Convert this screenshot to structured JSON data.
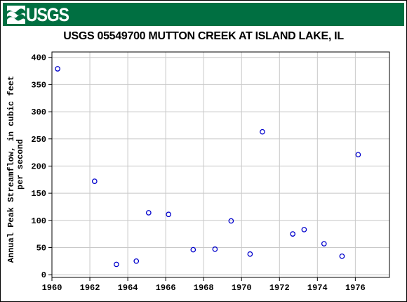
{
  "header": {
    "logo_text": "USGS",
    "banner_color": "#006f41"
  },
  "chart_data": {
    "type": "scatter",
    "title": "USGS 05549700 MUTTON CREEK AT ISLAND LAKE, IL",
    "xlabel": "",
    "ylabel_line1": "Annual Peak Streamflow, in cubic feet",
    "ylabel_line2": "per second",
    "xlim": [
      1960,
      1977.8
    ],
    "ylim": [
      -5,
      410
    ],
    "xticks": [
      1960,
      1962,
      1964,
      1966,
      1968,
      1970,
      1972,
      1974,
      1976
    ],
    "yticks": [
      0,
      50,
      100,
      150,
      200,
      250,
      300,
      350,
      400
    ],
    "grid": true,
    "marker": "open-circle",
    "marker_color": "#0000cc",
    "points": [
      {
        "x": 1960.3,
        "y": 379
      },
      {
        "x": 1962.25,
        "y": 172
      },
      {
        "x": 1963.4,
        "y": 19
      },
      {
        "x": 1964.45,
        "y": 25
      },
      {
        "x": 1965.1,
        "y": 114
      },
      {
        "x": 1966.15,
        "y": 111
      },
      {
        "x": 1967.45,
        "y": 46
      },
      {
        "x": 1968.6,
        "y": 47
      },
      {
        "x": 1969.45,
        "y": 99
      },
      {
        "x": 1970.45,
        "y": 38
      },
      {
        "x": 1971.1,
        "y": 263
      },
      {
        "x": 1972.7,
        "y": 75
      },
      {
        "x": 1973.3,
        "y": 83
      },
      {
        "x": 1974.35,
        "y": 57
      },
      {
        "x": 1975.3,
        "y": 34
      },
      {
        "x": 1976.15,
        "y": 221
      }
    ]
  }
}
